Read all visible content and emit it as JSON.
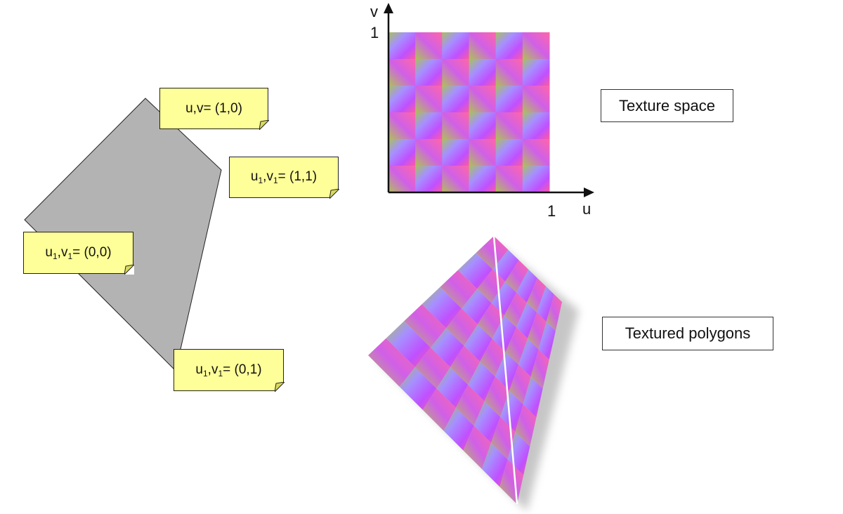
{
  "polygon_notes": [
    {
      "u": "u",
      "v": "v",
      "sub": "",
      "coords": "= (1,0)",
      "text": "u,v= (1,0)"
    },
    {
      "u": "u",
      "v": "v",
      "sub": "1",
      "coords": "= (1,1)",
      "text": "u1,v1= (1,1)"
    },
    {
      "u": "u",
      "v": "v",
      "sub": "1",
      "coords": "= (0,0)",
      "text": "u1,v1= (0,0)"
    },
    {
      "u": "u",
      "v": "v",
      "sub": "1",
      "coords": "= (0,1)",
      "text": "u1,v1= (0,1)"
    }
  ],
  "texture_space": {
    "label": "Texture space",
    "axis_u": "u",
    "axis_v": "v",
    "tick_u": "1",
    "tick_v": "1"
  },
  "textured_polygons": {
    "label": "Textured polygons"
  },
  "colors": {
    "polygon_fill": "#b3b3b3",
    "note_fill": "#ffff99",
    "gradient_pink": "#ff5a9e",
    "gradient_magenta": "#c04cff",
    "gradient_lilac": "#a088ff",
    "gradient_olive": "#b8c050"
  }
}
